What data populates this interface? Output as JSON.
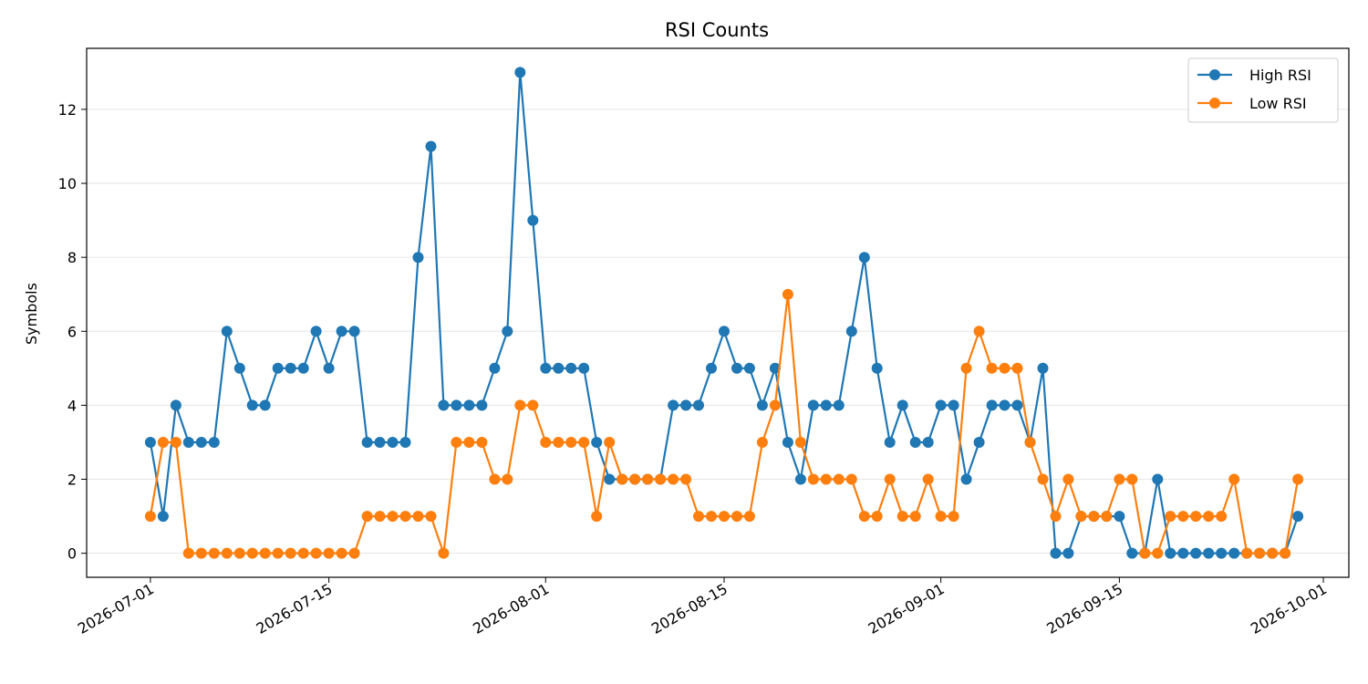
{
  "chart_data": {
    "type": "line",
    "title": "RSI Counts",
    "xlabel": "",
    "ylabel": "Symbols",
    "x_start": "2026-07-01",
    "x_end": "2026-09-29",
    "xlim": [
      "2026-06-26",
      "2026-10-03"
    ],
    "ylim": [
      -0.65,
      13.65
    ],
    "x_ticks": [
      {
        "date": "2026-07-01",
        "label": "2026-07-01"
      },
      {
        "date": "2026-07-15",
        "label": "2026-07-15"
      },
      {
        "date": "2026-08-01",
        "label": "2026-08-01"
      },
      {
        "date": "2026-08-15",
        "label": "2026-08-15"
      },
      {
        "date": "2026-09-01",
        "label": "2026-09-01"
      },
      {
        "date": "2026-09-15",
        "label": "2026-09-15"
      },
      {
        "date": "2026-10-01",
        "label": "2026-10-01"
      }
    ],
    "y_ticks": [
      0,
      2,
      4,
      6,
      8,
      10,
      12
    ],
    "grid": "horizontal",
    "legend_position": "top-right",
    "series": [
      {
        "name": "High RSI",
        "color": "#1f77b4",
        "values": [
          3,
          1,
          4,
          3,
          3,
          3,
          6,
          5,
          4,
          4,
          5,
          5,
          5,
          6,
          5,
          6,
          6,
          3,
          3,
          3,
          3,
          8,
          11,
          4,
          4,
          4,
          4,
          5,
          6,
          13,
          9,
          5,
          5,
          5,
          5,
          3,
          2,
          2,
          2,
          2,
          2,
          4,
          4,
          4,
          5,
          6,
          5,
          5,
          4,
          5,
          3,
          2,
          4,
          4,
          4,
          6,
          8,
          5,
          3,
          4,
          3,
          3,
          4,
          4,
          2,
          3,
          4,
          4,
          4,
          3,
          5,
          0,
          0,
          1,
          1,
          1,
          1,
          0,
          0,
          2,
          0,
          0,
          0,
          0,
          0,
          0,
          0,
          0,
          0,
          0,
          1
        ]
      },
      {
        "name": "Low RSI",
        "color": "#ff7f0e",
        "values": [
          1,
          3,
          3,
          0,
          0,
          0,
          0,
          0,
          0,
          0,
          0,
          0,
          0,
          0,
          0,
          0,
          0,
          1,
          1,
          1,
          1,
          1,
          1,
          0,
          3,
          3,
          3,
          2,
          2,
          4,
          4,
          3,
          3,
          3,
          3,
          1,
          3,
          2,
          2,
          2,
          2,
          2,
          2,
          1,
          1,
          1,
          1,
          1,
          3,
          4,
          7,
          3,
          2,
          2,
          2,
          2,
          1,
          1,
          2,
          1,
          1,
          2,
          1,
          1,
          5,
          6,
          5,
          5,
          5,
          3,
          2,
          1,
          2,
          1,
          1,
          1,
          2,
          2,
          0,
          0,
          1,
          1,
          1,
          1,
          1,
          2,
          0,
          0,
          0,
          0,
          2
        ]
      }
    ]
  }
}
